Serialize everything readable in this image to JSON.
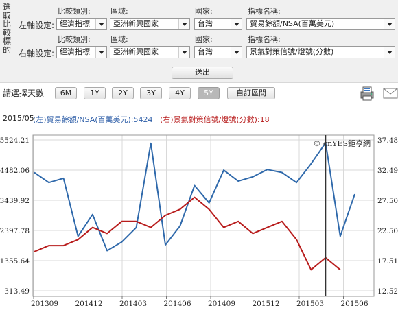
{
  "panel": {
    "side_label": [
      "選",
      "取",
      "比",
      "較",
      "標",
      "的"
    ],
    "rows": [
      {
        "label": "左軸設定:",
        "fields": [
          {
            "label": "比較類別:",
            "value": "經濟指標"
          },
          {
            "label": "區域:",
            "value": "亞洲新興國家"
          },
          {
            "label": "國家:",
            "value": "台灣"
          },
          {
            "label": "指標名稱:",
            "value": "貿易餘額/NSA(百萬美元)"
          }
        ]
      },
      {
        "label": "右軸設定:",
        "fields": [
          {
            "label": "比較類別:",
            "value": "經濟指標"
          },
          {
            "label": "區域:",
            "value": "亞洲新興國家"
          },
          {
            "label": "國家:",
            "value": "台灣"
          },
          {
            "label": "指標名稱:",
            "value": "景氣對策信號/燈號(分數)"
          }
        ]
      }
    ],
    "submit_label": "送出"
  },
  "range": {
    "label": "請選擇天數",
    "buttons": [
      "6M",
      "1Y",
      "2Y",
      "3Y",
      "4Y",
      "5Y",
      "自訂區間"
    ],
    "active": "5Y"
  },
  "chart_header": {
    "date": "2015/05",
    "left_legend": "(左)貿易餘額/NSA(百萬美元):5424",
    "right_legend": "(右)景氣對策信號/燈號(分數):18"
  },
  "colors": {
    "left_series": "#2f69ab",
    "right_series": "#b81c1c",
    "cursor": "#333333",
    "grid": "#d9d9d9"
  },
  "icons": [
    "print-icon",
    "mail-icon"
  ],
  "chart_data": {
    "type": "line",
    "watermark": "© cnYES鉅亨網",
    "x_tick_labels": [
      "201309",
      "201412",
      "201403",
      "201406",
      "201409",
      "201512",
      "201503",
      "201506"
    ],
    "left_axis": {
      "ticks": [
        "5524.21",
        "4482.06",
        "3439.92",
        "2397.78",
        "1355.64",
        "313.49"
      ],
      "range": [
        313.49,
        5524.21
      ]
    },
    "right_axis": {
      "ticks": [
        "37.48",
        "32.49",
        "27.50",
        "22.50",
        "17.51",
        "12.52"
      ],
      "range": [
        12.52,
        37.48
      ]
    },
    "series": [
      {
        "name": "貿易餘額/NSA(百萬美元)",
        "axis": "left",
        "values": [
          4400,
          4050,
          4200,
          2200,
          2950,
          1700,
          2000,
          2500,
          5410,
          1900,
          2550,
          3950,
          3350,
          4480,
          4100,
          4250,
          4500,
          4400,
          4050,
          4700,
          5424,
          2200,
          3650
        ]
      },
      {
        "name": "景氣對策信號/燈號(分數)",
        "axis": "right",
        "values": [
          19,
          20,
          20,
          21,
          23,
          22,
          24,
          24,
          23,
          25,
          26,
          28,
          26,
          23,
          24,
          22,
          23,
          24,
          21,
          16,
          18,
          16
        ]
      }
    ],
    "cursor_index": 20,
    "grid": true
  }
}
